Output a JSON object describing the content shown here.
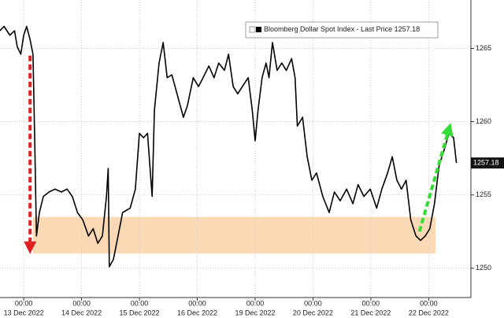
{
  "chart_data": {
    "type": "line",
    "series": [
      {
        "name": "Bloomberg Dollar Spot Index - Last Price",
        "color": "#000000",
        "x": [
          -0.41,
          -0.34,
          -0.24,
          -0.16,
          -0.11,
          -0.05,
          0,
          0.05,
          0.11,
          0.16,
          0.19,
          0.22,
          0.27,
          0.34,
          0.44,
          0.54,
          0.65,
          0.75,
          0.84,
          0.93,
          1.02,
          1.12,
          1.2,
          1.28,
          1.36,
          1.43,
          1.46,
          1.48,
          1.55,
          1.63,
          1.71,
          1.84,
          1.93,
          2.0,
          2.07,
          2.14,
          2.22,
          2.26,
          2.34,
          2.41,
          2.48,
          2.56,
          2.65,
          2.76,
          2.83,
          2.93,
          3.02,
          3.1,
          3.2,
          3.29,
          3.37,
          3.47,
          3.54,
          3.62,
          3.7,
          3.78,
          3.88,
          3.95,
          4.0,
          4.05,
          4.12,
          4.19,
          4.24,
          4.3,
          4.38,
          4.46,
          4.54,
          4.63,
          4.69,
          4.73,
          4.82,
          4.9,
          4.98,
          5.06,
          5.17,
          5.28,
          5.37,
          5.47,
          5.58,
          5.69,
          5.78,
          5.88,
          5.99,
          6.1,
          6.19,
          6.29,
          6.37,
          6.45,
          6.53,
          6.61,
          6.69,
          6.78,
          6.86,
          6.94,
          7.02,
          7.1,
          7.18,
          7.27,
          7.35,
          7.43,
          7.48
        ],
        "values": [
          1266.2,
          1266.5,
          1265.9,
          1266.2,
          1265.1,
          1264.6,
          1265.9,
          1266.5,
          1265.6,
          1264.6,
          1258.7,
          1252.2,
          1253.8,
          1254.9,
          1255.2,
          1255.4,
          1255.2,
          1255.4,
          1254.9,
          1253.8,
          1253.3,
          1252.2,
          1252.7,
          1251.7,
          1252.2,
          1254.9,
          1256.8,
          1250.1,
          1250.6,
          1252.2,
          1253.8,
          1254.1,
          1255.4,
          1259.2,
          1258.9,
          1259.2,
          1254.9,
          1260.8,
          1264.0,
          1265.4,
          1263.0,
          1263.2,
          1261.9,
          1260.3,
          1261.1,
          1263.0,
          1262.4,
          1263.0,
          1263.8,
          1263.0,
          1264.0,
          1263.5,
          1264.6,
          1262.4,
          1261.9,
          1262.4,
          1263.0,
          1260.8,
          1258.7,
          1260.8,
          1263.0,
          1264.0,
          1263.0,
          1265.4,
          1263.5,
          1264.0,
          1263.5,
          1264.3,
          1263.0,
          1259.7,
          1260.3,
          1257.6,
          1256.0,
          1256.5,
          1254.9,
          1253.8,
          1255.2,
          1254.6,
          1255.4,
          1254.4,
          1255.7,
          1254.9,
          1255.4,
          1254.1,
          1255.4,
          1256.5,
          1257.6,
          1256.0,
          1255.4,
          1256.0,
          1253.3,
          1252.2,
          1251.9,
          1252.2,
          1252.7,
          1254.4,
          1257.0,
          1258.1,
          1259.2,
          1258.9,
          1257.18
        ]
      }
    ],
    "xlim": [
      -0.41,
      7.73
    ],
    "xticks": [
      {
        "value": 0,
        "label": "00:00"
      },
      {
        "value": 1,
        "label": "00:00"
      },
      {
        "value": 2,
        "label": "00:00"
      },
      {
        "value": 3,
        "label": "00:00"
      },
      {
        "value": 4,
        "label": "00:00"
      },
      {
        "value": 5,
        "label": "00:00"
      },
      {
        "value": 6,
        "label": "00:00"
      },
      {
        "value": 7,
        "label": "00:00"
      }
    ],
    "xtick_dates": [
      "13 Dec 2022",
      "14 Dec 2022",
      "15 Dec 2022",
      "16 Dec 2022",
      "19 Dec 2022",
      "20 Dec 2022",
      "21 Dec 2022",
      "22 Dec 2022"
    ],
    "ylim": [
      1248,
      1268.3
    ],
    "yticks": [
      1250,
      1255,
      1260,
      1265
    ],
    "grid": true,
    "band": {
      "x": [
        0.16,
        7.12
      ],
      "y": [
        1251.0,
        1253.5
      ],
      "color": "#fbd9b5"
    },
    "arrows": [
      {
        "x": [
          0.11,
          0.11
        ],
        "y": [
          1264.5,
          1251.4
        ],
        "color": "#e02020"
      },
      {
        "x": [
          6.84,
          7.35
        ],
        "y": [
          1252.5,
          1259.5
        ],
        "color": "#33dd33"
      }
    ]
  }
}
